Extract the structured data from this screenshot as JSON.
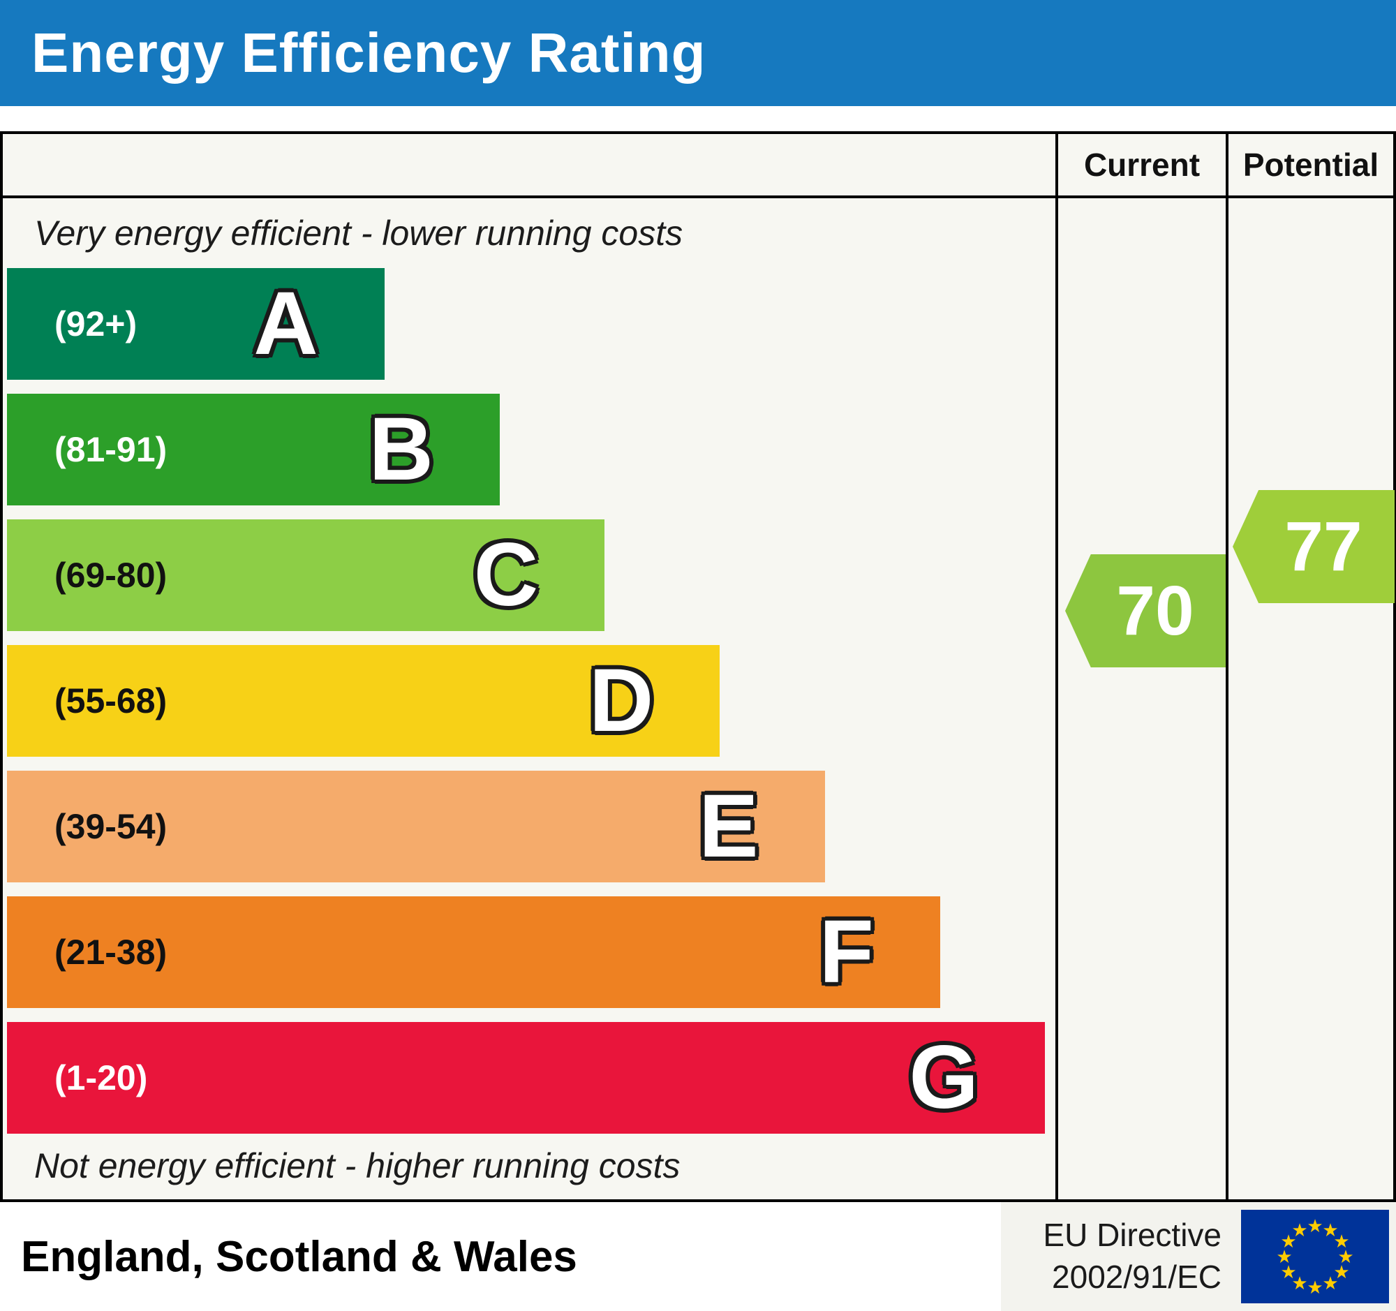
{
  "header": {
    "title": "Energy Efficiency Rating"
  },
  "columns": {
    "current_label": "Current",
    "potential_label": "Potential"
  },
  "notes": {
    "top": "Very energy efficient - lower running costs",
    "bottom": "Not energy efficient - higher running costs"
  },
  "ratings": {
    "current": {
      "value": "70",
      "band": "C",
      "color": "#8dc63f"
    },
    "potential": {
      "value": "77",
      "band": "C",
      "color": "#9fce3a"
    }
  },
  "footer": {
    "region": "England, Scotland & Wales",
    "directive_line1": "EU Directive",
    "directive_line2": "2002/91/EC",
    "flag": "eu-flag"
  },
  "chart_data": {
    "type": "bar",
    "title": "Energy Efficiency Rating",
    "region": "England, Scotland & Wales",
    "current": 70,
    "potential": 77,
    "bands": [
      {
        "letter": "A",
        "range_label": "(92+)",
        "range": [
          92,
          100
        ],
        "color": "#008054",
        "label_color": "#ffffff",
        "width_pct": 36
      },
      {
        "letter": "B",
        "range_label": "(81-91)",
        "range": [
          81,
          91
        ],
        "color": "#2c9f29",
        "label_color": "#ffffff",
        "width_pct": 47
      },
      {
        "letter": "C",
        "range_label": "(69-80)",
        "range": [
          69,
          80
        ],
        "color": "#8dce46",
        "label_color": "#111111",
        "width_pct": 57
      },
      {
        "letter": "D",
        "range_label": "(55-68)",
        "range": [
          55,
          68
        ],
        "color": "#f7d117",
        "label_color": "#111111",
        "width_pct": 68
      },
      {
        "letter": "E",
        "range_label": "(39-54)",
        "range": [
          39,
          54
        ],
        "color": "#f5ab6b",
        "label_color": "#111111",
        "width_pct": 78
      },
      {
        "letter": "F",
        "range_label": "(21-38)",
        "range": [
          21,
          38
        ],
        "color": "#ee8122",
        "label_color": "#111111",
        "width_pct": 89
      },
      {
        "letter": "G",
        "range_label": "(1-20)",
        "range": [
          1,
          20
        ],
        "color": "#e9153b",
        "label_color": "#ffffff",
        "width_pct": 99
      }
    ]
  }
}
